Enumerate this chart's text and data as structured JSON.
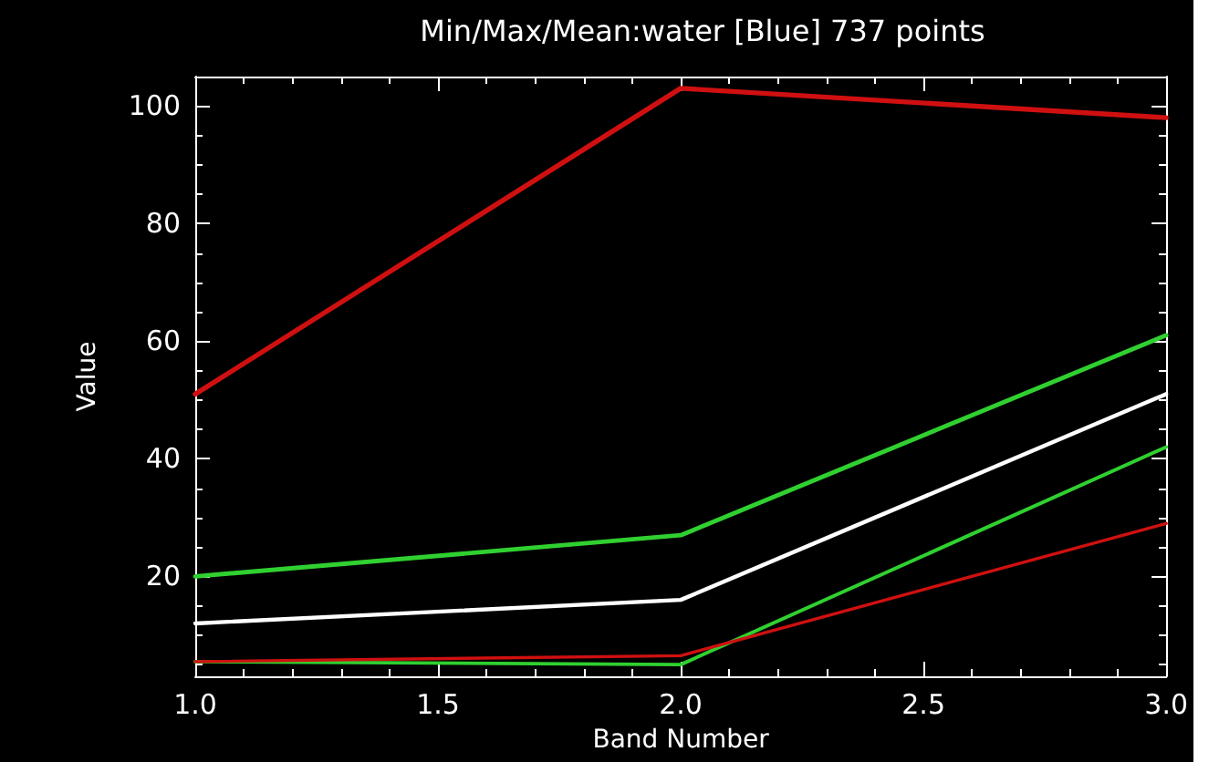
{
  "chart_data": {
    "type": "line",
    "title": "Min/Max/Mean:water [Blue] 737 points",
    "xlabel": "Band Number",
    "ylabel": "Value",
    "x": [
      1,
      2,
      3
    ],
    "series": [
      {
        "color": "#d01010",
        "values": [
          51,
          103,
          98
        ]
      },
      {
        "color": "#30d030",
        "values": [
          20,
          27,
          61
        ]
      },
      {
        "color": "#ffffff",
        "values": [
          12,
          16,
          51
        ]
      },
      {
        "color": "#30d030",
        "values": [
          5.5,
          5,
          42
        ]
      },
      {
        "color": "#d01010",
        "values": [
          5.5,
          6.5,
          29
        ]
      }
    ],
    "xlim": [
      1,
      3
    ],
    "xticks": [
      {
        "value": 1,
        "label": "1.0"
      },
      {
        "value": 1.5,
        "label": "1.5"
      },
      {
        "value": 2,
        "label": "2.0"
      },
      {
        "value": 2.5,
        "label": "2.5"
      },
      {
        "value": 3,
        "label": "3.0"
      }
    ],
    "ylim": [
      3,
      105
    ],
    "yticks": [
      20,
      40,
      60,
      80,
      100
    ],
    "grid": false,
    "marker": "none",
    "line_style": "solid"
  }
}
